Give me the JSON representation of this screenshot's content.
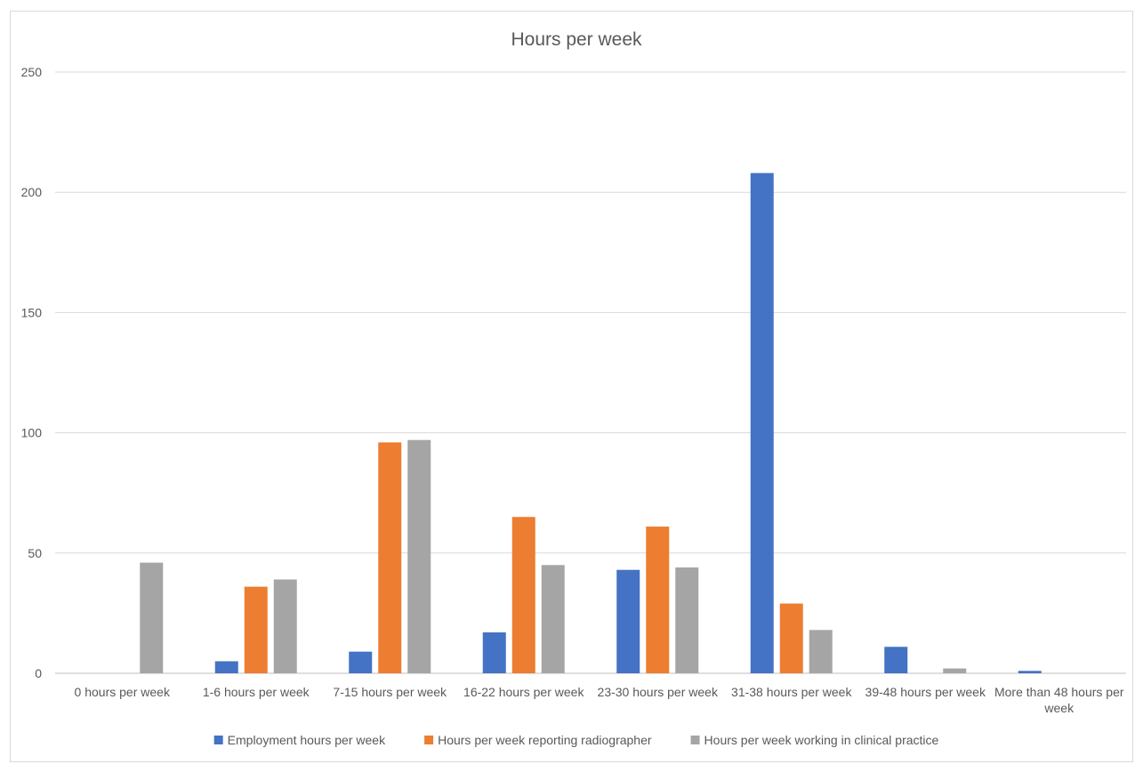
{
  "chart_data": {
    "type": "bar",
    "title": "Hours per week",
    "xlabel": "",
    "ylabel": "",
    "ylim": [
      0,
      250
    ],
    "yticks": [
      0,
      50,
      100,
      150,
      200,
      250
    ],
    "grid": true,
    "legend_position": "bottom",
    "categories": [
      "0 hours per week",
      "1-6 hours per week",
      "7-15 hours per week",
      "16-22 hours per week",
      "23-30 hours per week",
      "31-38 hours per week",
      "39-48 hours per week",
      "More than 48 hours per week"
    ],
    "series": [
      {
        "name": "Employment hours per week",
        "color": "#4472c4",
        "values": [
          0,
          5,
          9,
          17,
          43,
          208,
          11,
          1
        ]
      },
      {
        "name": "Hours per week reporting radiographer",
        "color": "#ed7d31",
        "values": [
          0,
          36,
          96,
          65,
          61,
          29,
          0,
          0
        ]
      },
      {
        "name": "Hours per week working in clinical practice",
        "color": "#a5a5a5",
        "values": [
          46,
          39,
          97,
          45,
          44,
          18,
          2,
          0
        ]
      }
    ]
  }
}
